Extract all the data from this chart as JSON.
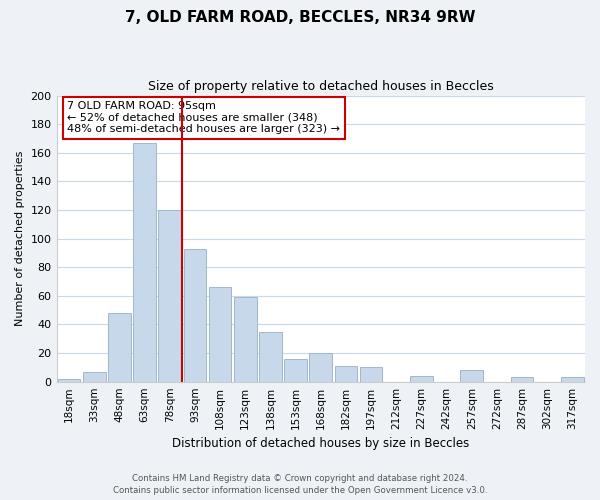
{
  "title1": "7, OLD FARM ROAD, BECCLES, NR34 9RW",
  "title2": "Size of property relative to detached houses in Beccles",
  "xlabel": "Distribution of detached houses by size in Beccles",
  "ylabel": "Number of detached properties",
  "bar_color": "#c8d8eb",
  "bar_edge_color": "#a0b8cc",
  "bin_labels": [
    "18sqm",
    "33sqm",
    "48sqm",
    "63sqm",
    "78sqm",
    "93sqm",
    "108sqm",
    "123sqm",
    "138sqm",
    "153sqm",
    "168sqm",
    "182sqm",
    "197sqm",
    "212sqm",
    "227sqm",
    "242sqm",
    "257sqm",
    "272sqm",
    "287sqm",
    "302sqm",
    "317sqm"
  ],
  "bar_heights": [
    2,
    7,
    48,
    167,
    120,
    93,
    66,
    59,
    35,
    16,
    20,
    11,
    10,
    0,
    4,
    0,
    8,
    0,
    3,
    0,
    3
  ],
  "ylim": [
    0,
    200
  ],
  "yticks": [
    0,
    20,
    40,
    60,
    80,
    100,
    120,
    140,
    160,
    180,
    200
  ],
  "vline_color": "#cc0000",
  "ann_line1": "7 OLD FARM ROAD: 95sqm",
  "ann_line2": "← 52% of detached houses are smaller (348)",
  "ann_line3": "48% of semi-detached houses are larger (323) →",
  "footer1": "Contains HM Land Registry data © Crown copyright and database right 2024.",
  "footer2": "Contains public sector information licensed under the Open Government Licence v3.0.",
  "bg_color": "#eef2f7",
  "plot_bg_color": "#ffffff",
  "grid_color": "#c8d8e8"
}
